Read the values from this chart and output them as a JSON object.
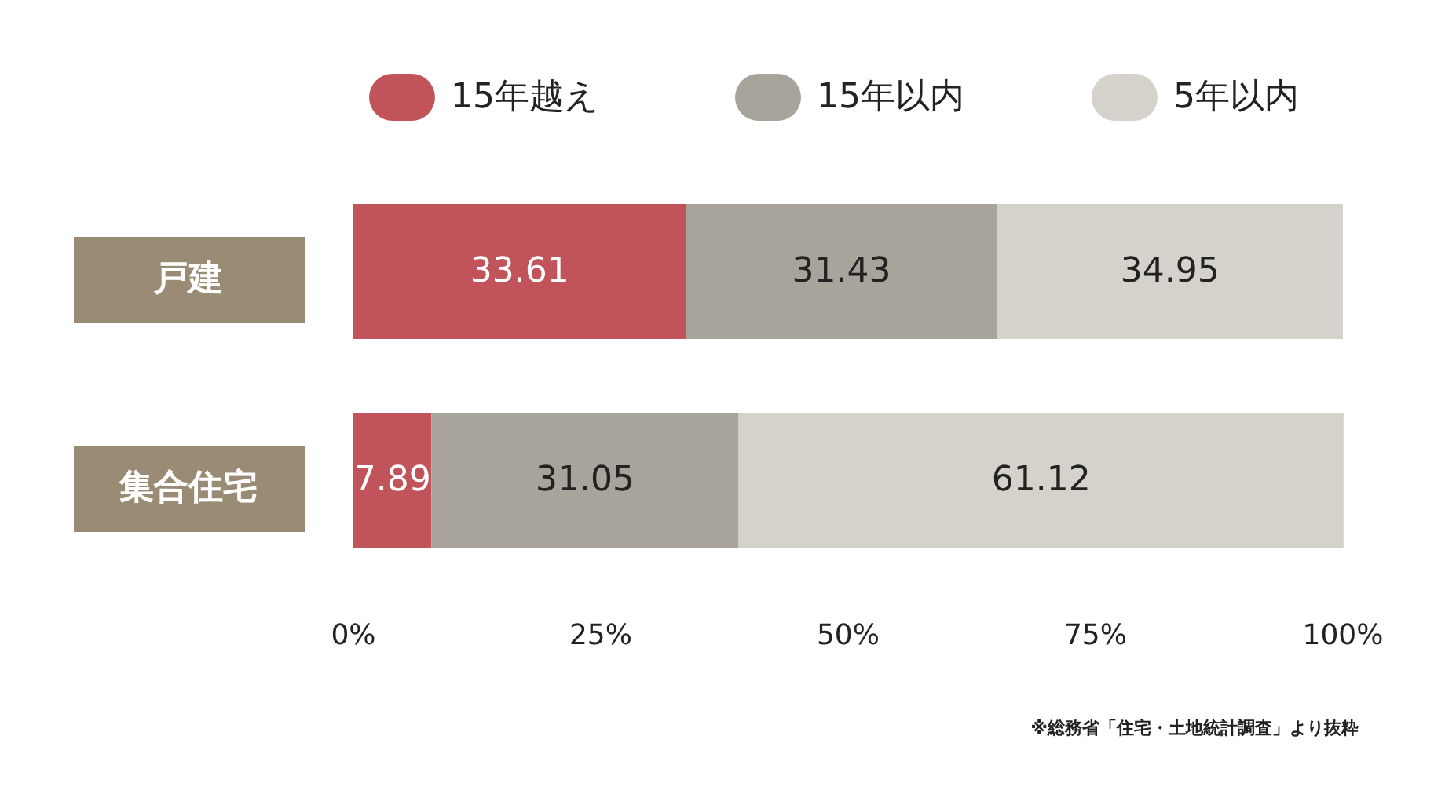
{
  "chart_data": {
    "type": "bar",
    "orientation": "horizontal",
    "stacked": true,
    "categories": [
      "戸建",
      "集合住宅"
    ],
    "series": [
      {
        "name": "15年越え",
        "color": "#c0545a",
        "values": [
          33.61,
          7.89
        ]
      },
      {
        "name": "15年以内",
        "color": "#a8a49c",
        "values": [
          31.43,
          31.05
        ]
      },
      {
        "name": "5年以内",
        "color": "#d5d1cb",
        "values": [
          34.95,
          61.12
        ]
      }
    ],
    "xlim": [
      0,
      100
    ],
    "xticks": [
      {
        "value": 0,
        "label": "0%"
      },
      {
        "value": 25,
        "label": "25%"
      },
      {
        "value": 50,
        "label": "50%"
      },
      {
        "value": 75,
        "label": "75%"
      },
      {
        "value": 100,
        "label": "100%"
      }
    ],
    "data_labels": true,
    "legend": "top",
    "grid": false,
    "annotations": [
      "※総務省「住宅・土地統計調査」より抜粋"
    ]
  }
}
